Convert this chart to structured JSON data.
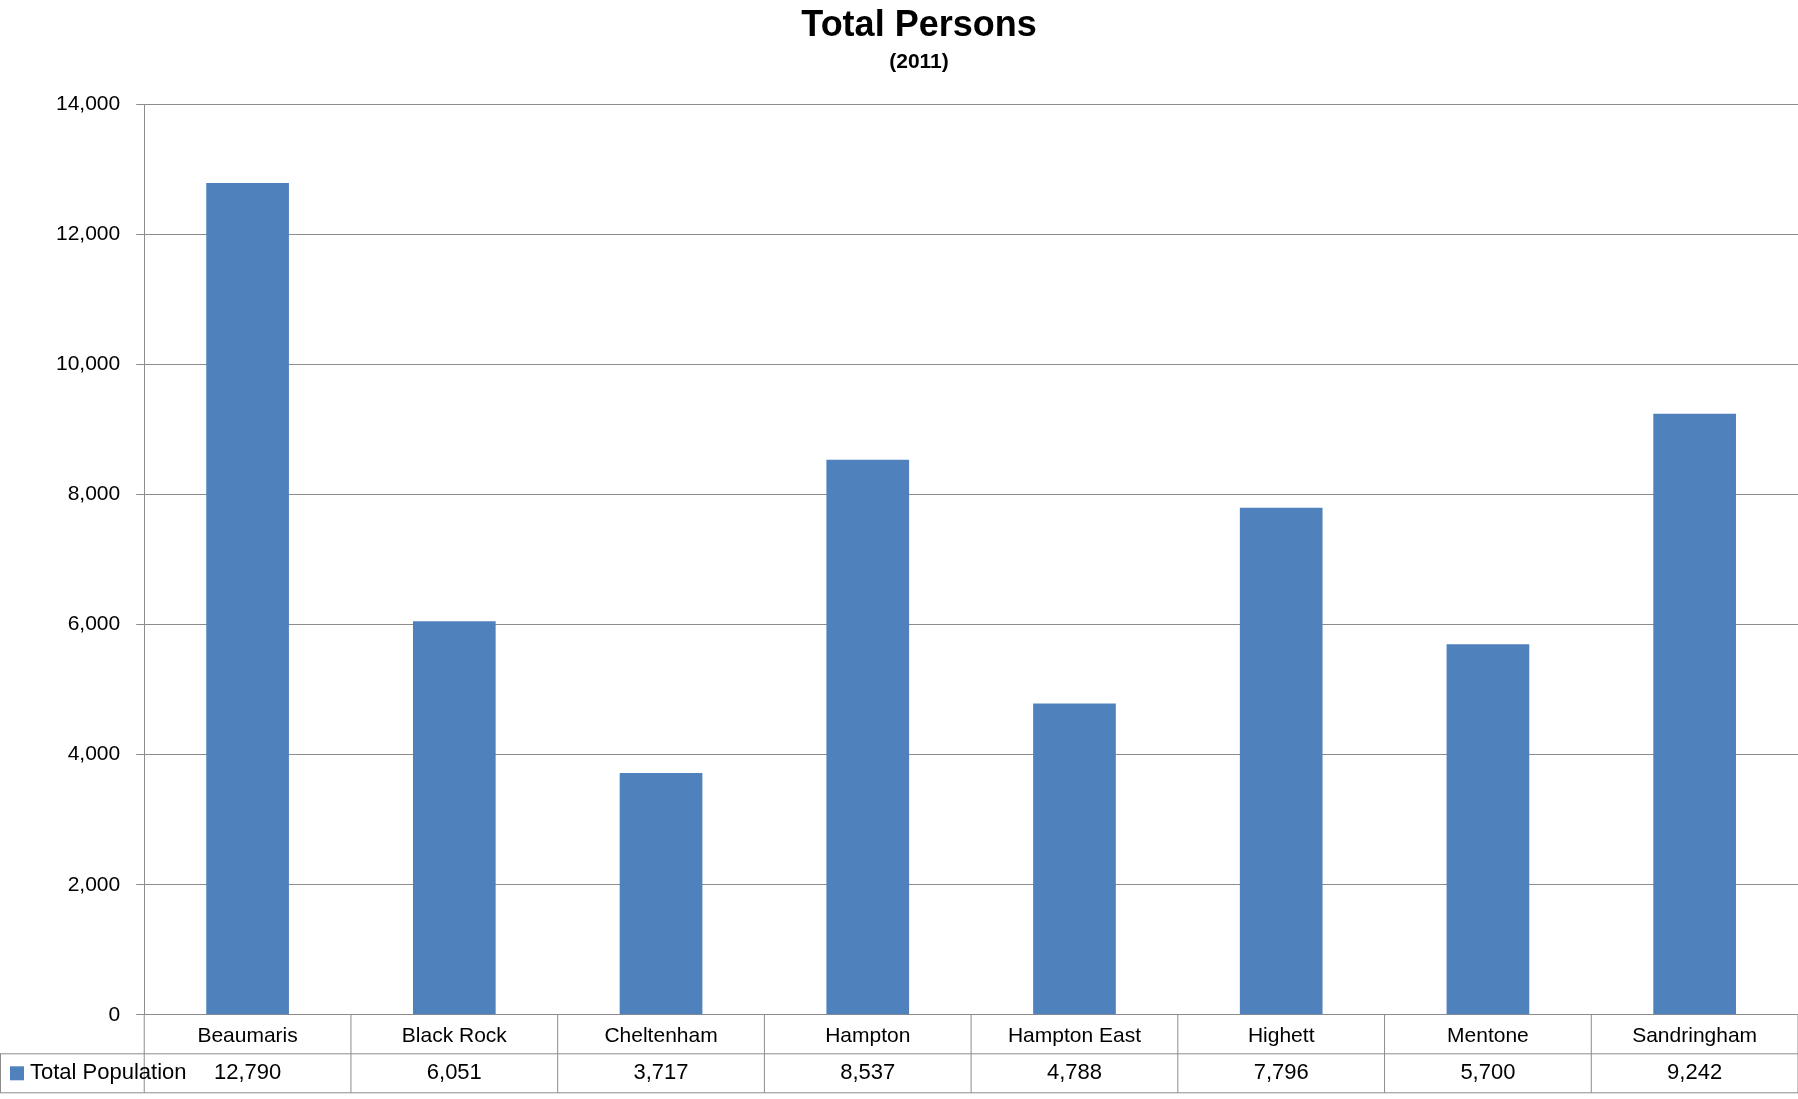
{
  "chart_data": {
    "type": "bar",
    "title": "Total Persons",
    "subtitle": "(2011)",
    "categories": [
      "Beaumaris",
      "Black Rock",
      "Cheltenham",
      "Hampton",
      "Hampton East",
      "Highett",
      "Mentone",
      "Sandringham"
    ],
    "series": [
      {
        "name": "Total Population",
        "color": "#4f81bd",
        "values": [
          12790,
          6051,
          3717,
          8537,
          4788,
          7796,
          5700,
          9242
        ],
        "value_labels": [
          "12,790",
          "6,051",
          "3,717",
          "8,537",
          "4,788",
          "7,796",
          "5,700",
          "9,242"
        ]
      }
    ],
    "ylim": [
      0,
      14000
    ],
    "yticks": [
      0,
      {
        "value": 2000,
        "label": "2,000"
      },
      {
        "value": 4000,
        "label": "4,000"
      },
      {
        "value": 6000,
        "label": "6,000"
      },
      {
        "value": 8000,
        "label": "8,000"
      },
      {
        "value": 10000,
        "label": "10,000"
      },
      {
        "value": 12000,
        "label": "12,000"
      },
      {
        "value": 14000,
        "label": "14,000"
      }
    ],
    "grid": "y",
    "legend": "bottom"
  }
}
